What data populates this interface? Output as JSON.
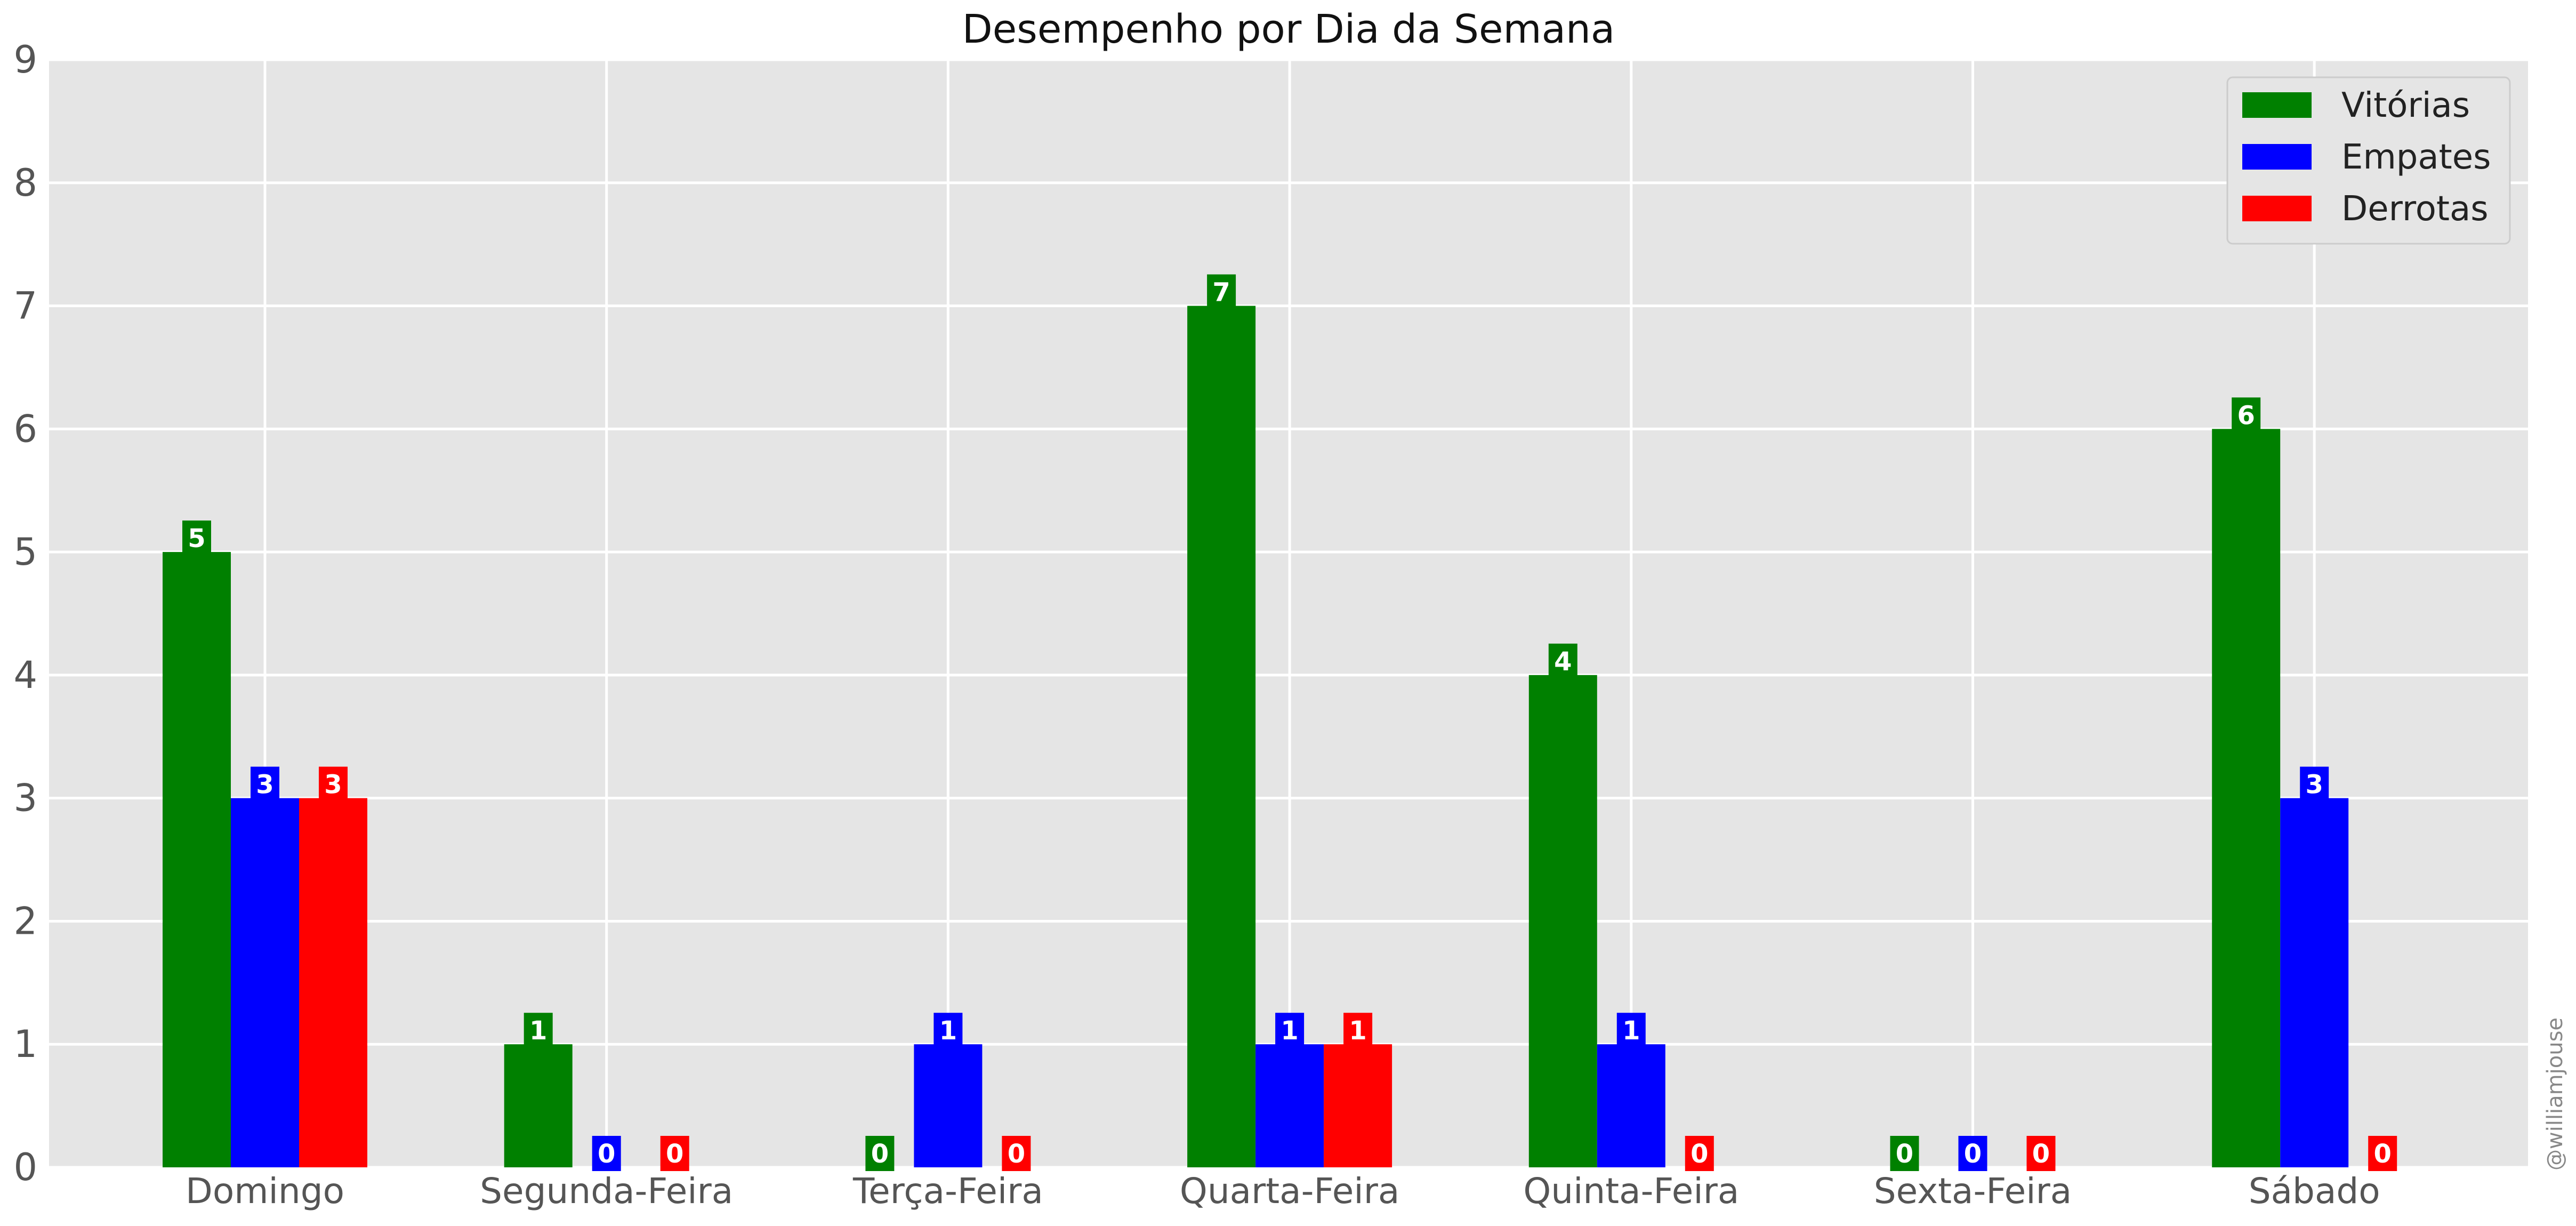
{
  "chart_data": {
    "type": "bar",
    "title": "Desempenho por Dia da Semana",
    "xlabel": "",
    "ylabel": "",
    "categories": [
      "Domingo",
      "Segunda-Feira",
      "Terça-Feira",
      "Quarta-Feira",
      "Quinta-Feira",
      "Sexta-Feira",
      "Sábado"
    ],
    "series": [
      {
        "name": "Vitórias",
        "color": "#008000",
        "values": [
          5,
          1,
          0,
          7,
          4,
          0,
          6
        ]
      },
      {
        "name": "Empates",
        "color": "#0000ff",
        "values": [
          3,
          0,
          1,
          1,
          1,
          0,
          3
        ]
      },
      {
        "name": "Derrotas",
        "color": "#ff0000",
        "values": [
          3,
          0,
          0,
          1,
          0,
          0,
          0
        ]
      }
    ],
    "ylim": [
      0,
      9
    ],
    "yticks": [
      0,
      1,
      2,
      3,
      4,
      5,
      6,
      7,
      8,
      9
    ],
    "grid": true,
    "legend_position": "top-right",
    "background_color": "#e5e5e5"
  },
  "watermark": "@williamjouse"
}
